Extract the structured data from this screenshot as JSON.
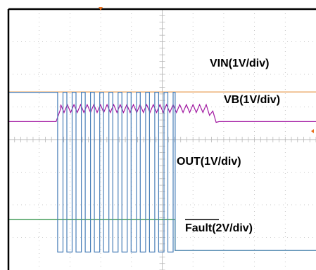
{
  "chart_data": {
    "type": "line",
    "title": "",
    "x_divisions": 10,
    "y_divisions": 8,
    "grid": true,
    "colors": {
      "background": "#ffffff",
      "grid": "#b8b8b8",
      "frame": "#000000",
      "marker": "#e8701e",
      "VIN": "#e8a15a",
      "VB": "#a21aa2",
      "OUT": "#4a7fb8",
      "Fault": "#1f8a3a"
    },
    "labels": {
      "vin": "VIN(1V/div)",
      "vb": "VB(1V/div)",
      "out": "OUT(1V/div)",
      "fault_name": "Fault",
      "fault_scale": "(2V/div)"
    },
    "series": [
      {
        "name": "VIN",
        "scale": "1V/div",
        "x": [
          0,
          10
        ],
        "y": [
          5.46,
          5.46
        ]
      },
      {
        "name": "VB",
        "scale": "1V/div",
        "x": [
          0,
          1.55,
          1.7,
          6.45,
          6.85,
          10
        ],
        "y": [
          4.55,
          4.55,
          4.95,
          4.95,
          4.55,
          4.55
        ],
        "ripple": {
          "x_start": 1.7,
          "x_end": 6.85,
          "period": 0.215,
          "amplitude": 0.12
        }
      },
      {
        "name": "OUT",
        "scale": "1V/div",
        "high": 5.45,
        "low": 0.55,
        "pulses": {
          "x_start": 1.6,
          "period": 0.2985,
          "width": 0.1735,
          "count": 13,
          "x_end": 5.42
        },
        "after": 0.6
      },
      {
        "name": "Fault",
        "scale": "2V/div",
        "x": [
          0,
          5.42,
          5.42,
          10
        ],
        "y": [
          1.55,
          1.55,
          0.6,
          0.6
        ]
      }
    ]
  }
}
